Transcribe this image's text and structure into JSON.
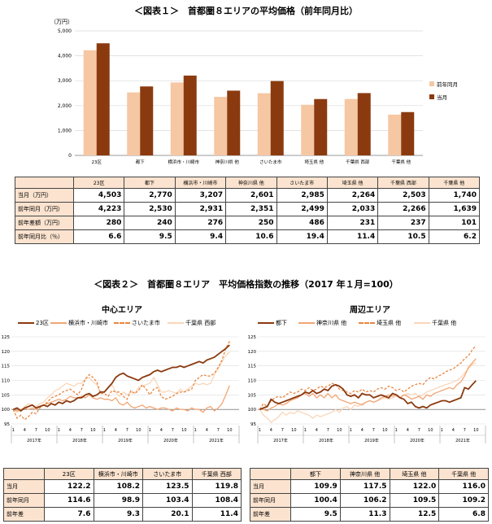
{
  "figure1": {
    "title": "＜図表１＞　首都圏８エリアの平均価格（前年同月比）",
    "unit": "（万円）",
    "rows": [
      {
        "label": "当月（万円）",
        "values": [
          "4,503",
          "2,770",
          "3,207",
          "2,601",
          "2,985",
          "2,264",
          "2,503",
          "1,740"
        ]
      },
      {
        "label": "前年同月（万円）",
        "values": [
          "4,223",
          "2,530",
          "2,931",
          "2,351",
          "2,499",
          "2,033",
          "2,266",
          "1,639"
        ]
      },
      {
        "label": "前年差額（万円）",
        "values": [
          "280",
          "240",
          "276",
          "250",
          "486",
          "231",
          "237",
          "101"
        ]
      },
      {
        "label": "前年同月比（％）",
        "values": [
          "6.6",
          "9.5",
          "9.4",
          "10.6",
          "19.4",
          "11.4",
          "10.5",
          "6.2"
        ]
      }
    ]
  },
  "figure2": {
    "title": "＜図表２＞　首都圏８エリア　平均価格指数の推移（2017 年１月=100）",
    "left": {
      "title": "中心エリア",
      "table": {
        "headers": [
          "23区",
          "横浜市・川崎市",
          "さいたま市",
          "千葉県 西部"
        ],
        "rows": [
          {
            "label": "当月",
            "values": [
              "122.2",
              "108.2",
              "123.5",
              "119.8"
            ]
          },
          {
            "label": "前年同月",
            "values": [
              "114.6",
              "98.9",
              "103.4",
              "108.4"
            ]
          },
          {
            "label": "前年差",
            "values": [
              "7.6",
              "9.3",
              "20.1",
              "11.4"
            ]
          }
        ]
      }
    },
    "right": {
      "title": "周辺エリア",
      "table": {
        "headers": [
          "都下",
          "神奈川県 他",
          "埼玉県 他",
          "千葉県 他"
        ],
        "rows": [
          {
            "label": "当月",
            "values": [
              "109.9",
              "117.5",
              "122.0",
              "116.0"
            ]
          },
          {
            "label": "前年同月",
            "values": [
              "100.4",
              "106.2",
              "109.5",
              "109.2"
            ]
          },
          {
            "label": "前年差",
            "values": [
              "9.5",
              "11.3",
              "12.5",
              "6.8"
            ]
          }
        ]
      }
    }
  },
  "chart_data": [
    {
      "type": "bar",
      "title": "＜図表１＞　首都圏８エリアの平均価格（前年同月比）",
      "ylabel": "（万円）",
      "ylim": [
        0,
        5000
      ],
      "yticks": [
        "0",
        "1,000",
        "2,000",
        "3,000",
        "4,000",
        "5,000"
      ],
      "grid": true,
      "legend": "right",
      "categories": [
        "23区",
        "都下",
        "横浜市・川崎市",
        "神奈川県 他",
        "さいたま市",
        "埼玉県 他",
        "千葉県 西部",
        "千葉県 他"
      ],
      "series": [
        {
          "name": "前年同月",
          "color": "#f6c7a3",
          "values": [
            4223,
            2530,
            2931,
            2351,
            2499,
            2033,
            2266,
            1639
          ]
        },
        {
          "name": "当月",
          "color": "#8b3a0f",
          "values": [
            4503,
            2770,
            3207,
            2601,
            2985,
            2264,
            2503,
            1740
          ]
        }
      ]
    },
    {
      "type": "line",
      "title": "中心エリア",
      "ylim": [
        95,
        125
      ],
      "yticks": [
        "95",
        "100",
        "105",
        "110",
        "115",
        "120",
        "125"
      ],
      "xtick_months": [
        "1",
        "4",
        "7",
        "10",
        "1",
        "4",
        "7",
        "10",
        "1",
        "4",
        "7",
        "10",
        "1",
        "4",
        "7",
        "10",
        "1",
        "4",
        "7",
        "10"
      ],
      "years": [
        "2017年",
        "2018年",
        "2019年",
        "2020年",
        "2021年"
      ],
      "x_start": "2017-01",
      "x_end": "2021-12",
      "grid": true,
      "legend": "top",
      "series": [
        {
          "name": "23区",
          "color": "#8b3a0f",
          "style": "solid",
          "values": [
            100,
            100.5,
            99.5,
            100.5,
            101,
            101.5,
            100.5,
            101,
            101.5,
            101,
            102,
            101.5,
            102.5,
            102,
            103,
            102.5,
            103,
            104,
            104,
            105,
            105.5,
            104.5,
            105,
            106,
            106,
            107.5,
            109,
            111,
            112,
            112.5,
            111.5,
            111,
            110.5,
            110,
            111,
            111.5,
            112,
            113,
            113.5,
            113,
            113.5,
            114,
            114.5,
            114.5,
            115,
            114.5,
            115,
            115.5,
            116,
            116.5,
            116,
            117,
            117.5,
            118,
            119,
            120,
            121,
            122.2
          ]
        },
        {
          "name": "横浜市・川崎市",
          "color": "#f2a574",
          "style": "solid",
          "values": [
            100,
            99.5,
            100,
            100.5,
            100,
            100.5,
            100,
            101,
            101.5,
            102,
            102.5,
            103,
            103.5,
            103,
            103.5,
            104.5,
            104,
            104,
            104.5,
            104,
            105,
            104,
            103.5,
            104,
            103.5,
            103.5,
            103,
            104,
            102,
            101.5,
            102.5,
            101,
            100.5,
            101,
            101.5,
            100.5,
            101,
            100.5,
            100,
            100.5,
            100.5,
            100,
            99.5,
            100.5,
            100,
            100,
            99.5,
            100.5,
            100,
            100,
            99,
            100.5,
            101,
            99.5,
            100.5,
            102,
            105,
            108.2
          ]
        },
        {
          "name": "さいたま市",
          "color": "#e8853f",
          "style": "dash",
          "values": [
            100,
            97,
            98,
            96.5,
            97.5,
            99,
            98.5,
            100.5,
            101.5,
            102.5,
            104,
            104.5,
            105,
            106,
            106.5,
            107,
            106,
            105,
            107,
            110.5,
            112,
            111,
            109.5,
            105.5,
            105.5,
            104.5,
            106.5,
            106,
            106,
            104.5,
            103.5,
            106.5,
            105.5,
            106.5,
            108.5,
            107,
            105,
            107,
            107.5,
            104.5,
            103.5,
            104,
            104.5,
            105.5,
            106,
            106,
            106.5,
            107,
            110,
            111,
            112,
            111.5,
            111.5,
            112.5,
            114.5,
            117,
            121,
            123.5
          ]
        },
        {
          "name": "千葉県 西部",
          "color": "#f9d6b9",
          "style": "solid",
          "values": [
            100,
            99,
            99.5,
            101,
            102,
            101.5,
            101,
            102,
            102.5,
            104,
            105,
            106.5,
            107,
            108,
            109,
            108.5,
            108,
            109,
            109,
            110.5,
            111,
            109.5,
            108.5,
            105.5,
            106,
            107.5,
            108.5,
            106,
            104.5,
            106,
            105,
            106,
            105.5,
            107.5,
            108,
            108.5,
            109,
            111,
            108.5,
            106,
            106,
            106.5,
            106,
            105.5,
            107,
            106,
            107,
            108,
            109,
            108.5,
            109,
            108.5,
            109,
            112,
            114,
            116.5,
            118.5,
            119.8
          ]
        }
      ]
    },
    {
      "type": "line",
      "title": "周辺エリア",
      "ylim": [
        95,
        125
      ],
      "yticks": [
        "95",
        "100",
        "105",
        "110",
        "115",
        "120",
        "125"
      ],
      "xtick_months": [
        "1",
        "4",
        "7",
        "10",
        "1",
        "4",
        "7",
        "10",
        "1",
        "4",
        "7",
        "10",
        "1",
        "4",
        "7",
        "10",
        "1",
        "4",
        "7",
        "10"
      ],
      "years": [
        "2017年",
        "2018年",
        "2019年",
        "2020年",
        "2021年"
      ],
      "x_start": "2017-01",
      "x_end": "2021-12",
      "grid": true,
      "legend": "top",
      "series": [
        {
          "name": "都下",
          "color": "#8b3a0f",
          "style": "solid",
          "values": [
            100,
            100.5,
            101,
            103.5,
            102.5,
            102,
            102.5,
            103,
            103.5,
            104,
            104.5,
            105,
            106,
            105.5,
            106.5,
            105.5,
            106,
            107,
            106.5,
            108,
            108.5,
            108,
            107,
            105,
            104.5,
            105,
            104,
            105.5,
            105,
            105,
            104,
            104.5,
            105,
            104.5,
            104,
            105.5,
            105,
            104,
            103.5,
            102,
            102.5,
            101,
            100.5,
            101,
            100.5,
            101.5,
            102,
            102.5,
            103,
            103,
            102.5,
            103,
            103.5,
            104,
            107.5,
            107,
            108.5,
            109.9
          ]
        },
        {
          "name": "神奈川県 他",
          "color": "#f2a574",
          "style": "solid",
          "values": [
            100,
            100,
            99.5,
            100.5,
            101,
            102,
            101.5,
            102,
            103,
            103.5,
            104,
            105,
            105.5,
            104.5,
            105.5,
            104,
            105,
            104,
            105.5,
            104,
            105,
            103.5,
            103,
            102.5,
            102,
            102.5,
            102,
            101.5,
            102.5,
            103,
            102.5,
            103,
            104,
            104.5,
            105,
            104.5,
            105,
            104,
            105,
            104.5,
            103.5,
            104,
            104.5,
            103.5,
            105,
            104.5,
            105.5,
            106,
            106.5,
            107,
            107.5,
            107,
            108.5,
            109.5,
            111.5,
            114.5,
            116,
            117.5
          ]
        },
        {
          "name": "埼玉県 他",
          "color": "#e8853f",
          "style": "dash",
          "values": [
            100,
            102,
            101,
            103,
            104,
            104.5,
            104,
            105,
            106,
            105.5,
            106,
            107,
            106.5,
            107.5,
            106.5,
            107,
            108,
            107.5,
            108,
            109,
            108.5,
            107,
            106.5,
            106,
            105.5,
            106.5,
            106,
            107,
            106,
            106.5,
            106,
            107,
            107.5,
            107,
            108,
            107.5,
            106.5,
            107,
            106,
            107,
            108,
            108.5,
            109,
            108.5,
            110,
            111,
            110.5,
            111.5,
            112,
            113,
            113.5,
            114,
            115,
            116,
            117.5,
            118.5,
            120.5,
            122
          ]
        },
        {
          "name": "千葉県 他",
          "color": "#f9d6b9",
          "style": "solid",
          "values": [
            100,
            98,
            97,
            95.5,
            96.5,
            97.5,
            99,
            98,
            99,
            98.5,
            99.5,
            99,
            98.5,
            98,
            97,
            98,
            97.5,
            98,
            98.5,
            99,
            100,
            99,
            100.5,
            101,
            100,
            101.5,
            101,
            102,
            102.5,
            103,
            102.5,
            103,
            103.5,
            104,
            103.5,
            104,
            104.5,
            104,
            105,
            105.5,
            105,
            105.5,
            104.5,
            105,
            106,
            106.5,
            107,
            107.5,
            108,
            108.5,
            109,
            109.5,
            110,
            111,
            112.5,
            114,
            115.5,
            116
          ]
        }
      ]
    }
  ]
}
